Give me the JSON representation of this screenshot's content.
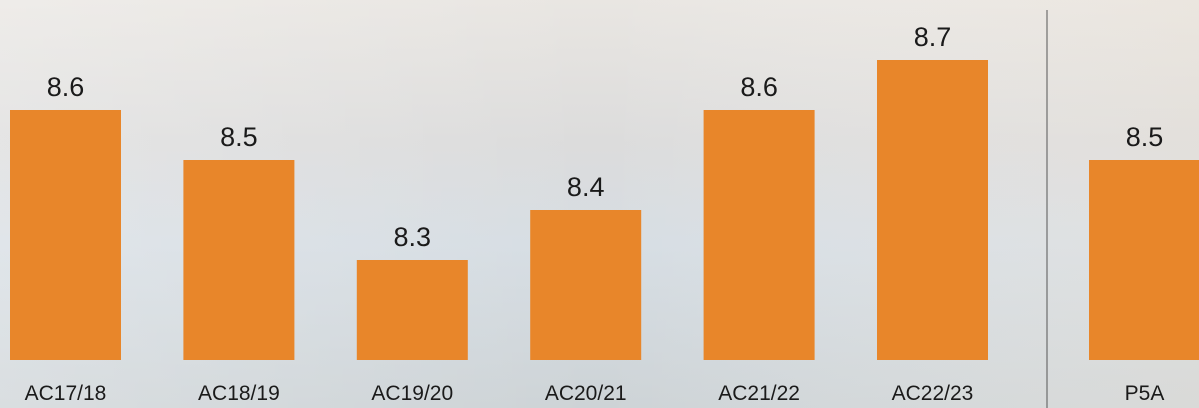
{
  "chart_data": {
    "type": "bar",
    "categories": [
      "AC17/18",
      "AC18/19",
      "AC19/20",
      "AC20/21",
      "AC21/22",
      "AC22/23",
      "P5A"
    ],
    "values": [
      8.6,
      8.5,
      8.3,
      8.4,
      8.6,
      8.7,
      8.5
    ],
    "color": "#e8862a",
    "ylim": [
      8.1,
      8.8
    ]
  }
}
